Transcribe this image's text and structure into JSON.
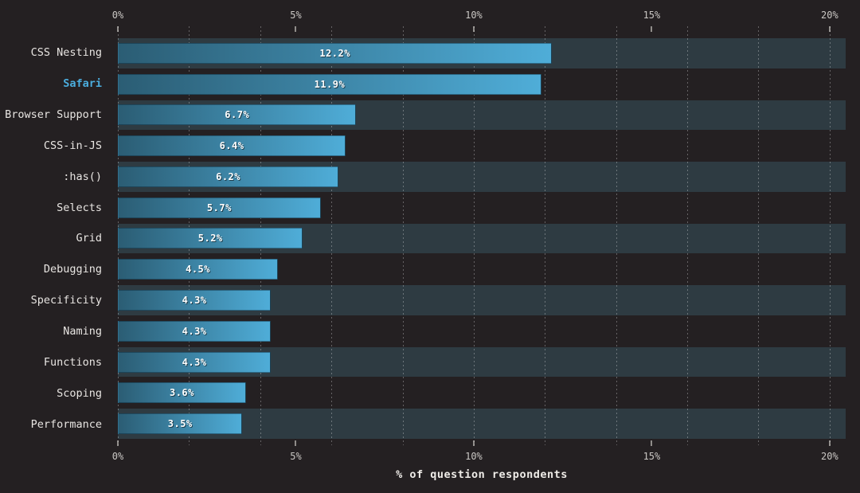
{
  "chart_data": {
    "type": "bar",
    "orientation": "horizontal",
    "title": "",
    "xlabel": "% of question respondents",
    "ylabel": "",
    "categories": [
      "CSS Nesting",
      "Safari",
      "Browser Support",
      "CSS-in-JS",
      ":has()",
      "Selects",
      "Grid",
      "Debugging",
      "Specificity",
      "Naming",
      "Functions",
      "Scoping",
      "Performance"
    ],
    "values": [
      12.2,
      11.9,
      6.7,
      6.4,
      6.2,
      5.7,
      5.2,
      4.5,
      4.3,
      4.3,
      4.3,
      3.6,
      3.5
    ],
    "value_labels": [
      "12.2%",
      "11.9%",
      "6.7%",
      "6.4%",
      "6.2%",
      "5.7%",
      "5.2%",
      "4.5%",
      "4.3%",
      "4.3%",
      "4.3%",
      "3.6%",
      "3.5%"
    ],
    "highlighted_category": "Safari",
    "x_axis_max": 20.45,
    "x_ticks": [
      {
        "value": 0,
        "label": "0%"
      },
      {
        "value": 5,
        "label": "5%"
      },
      {
        "value": 10,
        "label": "10%"
      },
      {
        "value": 15,
        "label": "15%"
      },
      {
        "value": 20,
        "label": "20%"
      }
    ],
    "gridline_values": [
      0,
      2,
      4,
      6,
      8,
      10,
      12,
      14,
      16,
      18,
      20
    ],
    "grid": "dotted vertical lines every 2%",
    "legend": "none",
    "striped_rows": "odd rows (1st, 3rd, ...) have full-width slate track background",
    "colors": {
      "background": "#242022",
      "track": "#2e3b42",
      "bar_gradient_start": "#2b5d74",
      "bar_gradient_end": "#4fadd8",
      "bar_border": "rgba(10,35,50,0.45)",
      "label": "#e8e5e2",
      "highlight_label": "#4badde",
      "axis_label": "#cac7c4",
      "axis_title": "#efece8",
      "tick": "#908d8a",
      "gridline": "rgba(255,255,255,0.30)",
      "value_label": "#ffffff"
    }
  }
}
